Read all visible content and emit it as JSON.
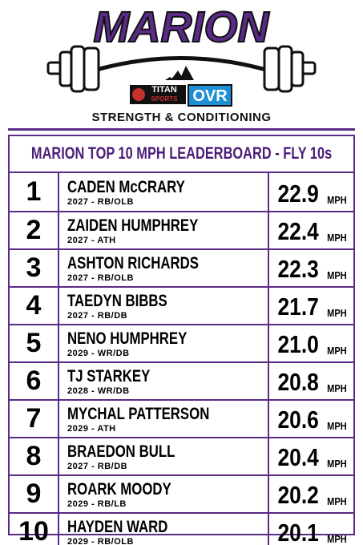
{
  "header": {
    "title": "MARION",
    "sponsors": [
      "TITAN",
      "SPORTS",
      "OVR"
    ],
    "subtitle": "STRENGTH & CONDITIONING"
  },
  "table": {
    "title": "MARION TOP 10 MPH LEADERBOARD - FLY 10s",
    "unit": "MPH",
    "rows": [
      [
        "1",
        "CADEN McCRARY",
        "2027 - RB/OLB",
        "22.9"
      ],
      [
        "2",
        "ZAIDEN HUMPHREY",
        "2027 - ATH",
        "22.4"
      ],
      [
        "3",
        "ASHTON RICHARDS",
        "2027 - RB/OLB",
        "22.3"
      ],
      [
        "4",
        "TAEDYN BIBBS",
        "2027 - RB/DB",
        "21.7"
      ],
      [
        "5",
        "NENO HUMPHREY",
        "2029 - WR/DB",
        "21.0"
      ],
      [
        "6",
        "TJ STARKEY",
        "2028 - WR/DB",
        "20.8"
      ],
      [
        "7",
        "MYCHAL PATTERSON",
        "2029 - ATH",
        "20.6"
      ],
      [
        "8",
        "BRAEDON BULL",
        "2027 - RB/DB",
        "20.4"
      ],
      [
        "9",
        "ROARK MOODY",
        "2029 - RB/LB",
        "20.2"
      ],
      [
        "10",
        "HAYDEN WARD",
        "2029 - RB/OLB",
        "20.1"
      ]
    ]
  }
}
